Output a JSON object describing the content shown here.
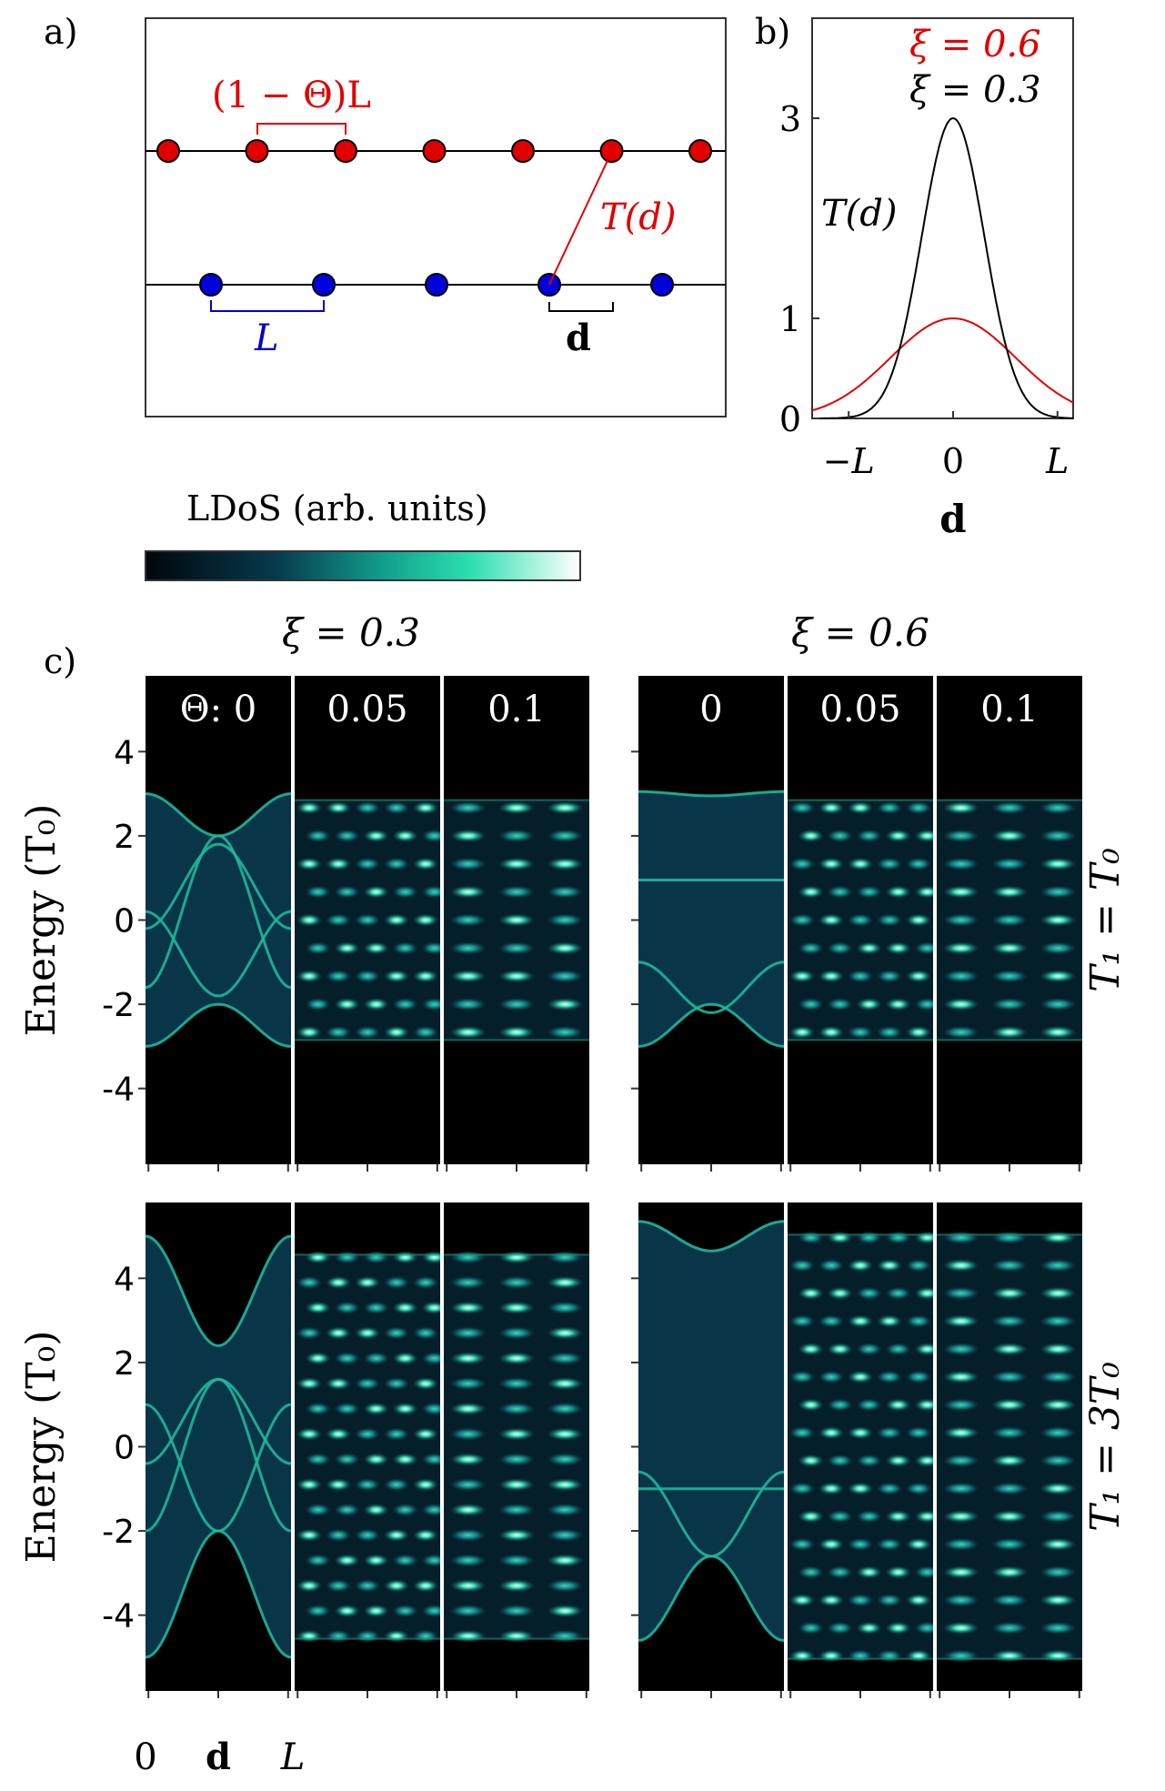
{
  "panel_labels": {
    "a": "a)",
    "b": "b)",
    "c": "c)"
  },
  "panel_a": {
    "red_gap_label": "(1 − Θ)L",
    "coupling_label": "T(d)",
    "blue_gap_label": "L",
    "offset_label": "d",
    "red_chain_sites": 7,
    "blue_chain_sites": 5
  },
  "chart_data": [
    {
      "type": "line",
      "panel": "b",
      "title": "",
      "ylabel": "T(d)",
      "xlabel": "d",
      "x_ticks": [
        "−L",
        "0",
        "L"
      ],
      "y_ticks": [
        "0",
        "1",
        "3"
      ],
      "xlim": [
        -1.35,
        1.15
      ],
      "ylim": [
        0,
        4.0
      ],
      "series": [
        {
          "name": "ξ = 0.6",
          "color": "#e00000",
          "amplitude": 1,
          "xi": 0.6
        },
        {
          "name": "ξ = 0.3",
          "color": "#000000",
          "amplitude": 3,
          "xi": 0.3
        }
      ]
    },
    {
      "type": "heatmap",
      "panel": "c",
      "colorbar_label": "LDoS (arb. units)",
      "colormap": [
        "#02060c",
        "#063a4c",
        "#11a08c",
        "#2ee0b0",
        "#ffffff"
      ],
      "column_titles": [
        "ξ = 0.3",
        "ξ = 0.6"
      ],
      "theta_prefix": "Θ: ",
      "theta_values": [
        "0",
        "0.05",
        "0.1"
      ],
      "row_labels": [
        "T₁ = T₀",
        "T₁ = 3T₀"
      ],
      "ylabel": "Energy (T₀)",
      "y_ticks": [
        "4",
        "2",
        "0",
        "-2",
        "-4"
      ],
      "x_ticks": [
        "0",
        "d",
        "L"
      ],
      "ylim": [
        -5.8,
        5.8
      ]
    }
  ]
}
